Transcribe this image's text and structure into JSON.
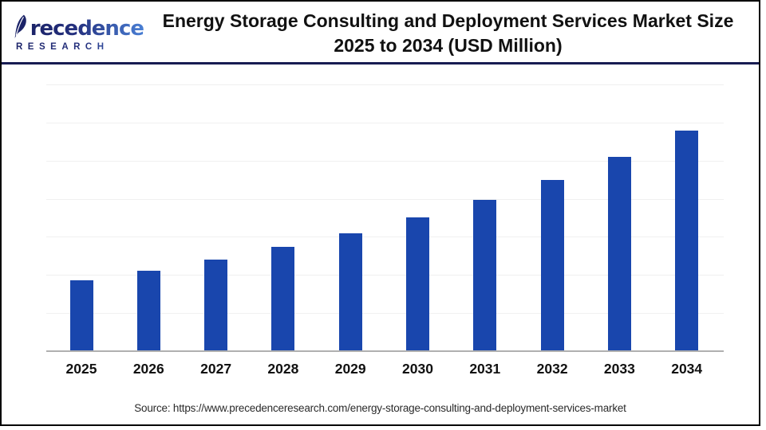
{
  "brand": {
    "name": "Precedence",
    "subtitle": "RESEARCH"
  },
  "header": {
    "title_line1": "Energy Storage Consulting and Deployment Services Market Size",
    "title_line2": "2025 to 2034 (USD Million)"
  },
  "source": {
    "label": "Source: https://www.precedenceresearch.com/energy-storage-consulting-and-deployment-services-market"
  },
  "colors": {
    "bar": "#1946ad",
    "header_divider": "#181c52",
    "frame_border": "#000000",
    "gridline": "#f0f0f0",
    "axis": "#b0b0b0",
    "logo_navy": "#1b2368",
    "logo_blue": "#4a7fd4",
    "title_text": "#111111",
    "source_text": "#2b2b2b"
  },
  "chart_data": {
    "type": "bar",
    "title": "Energy Storage Consulting and Deployment Services Market Size 2025 to 2034 (USD Million)",
    "unit": "USD Million",
    "categories": [
      "2025",
      "2026",
      "2027",
      "2028",
      "2029",
      "2030",
      "2031",
      "2032",
      "2033",
      "2034"
    ],
    "values": [
      92,
      105,
      119,
      136,
      154,
      174,
      198,
      224,
      254,
      288
    ],
    "xlabel": "",
    "ylabel": "",
    "ylim": [
      0,
      350
    ],
    "gridline_interval": 50,
    "grid": "horizontal",
    "legend": "none",
    "bar_color": "#1946ad",
    "note": "y-axis tick labels are not shown in the figure; values estimated from gridline spacing, growth ~13.5%/yr"
  }
}
